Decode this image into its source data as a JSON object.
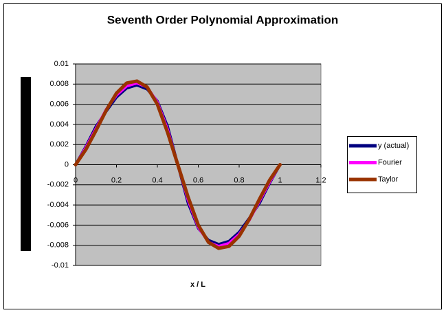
{
  "chart_data": {
    "type": "line",
    "title": "Seventh Order Polynomial Approximation",
    "x_label": "x / L",
    "x": [
      0,
      0.05,
      0.1,
      0.15,
      0.2,
      0.25,
      0.3,
      0.35,
      0.4,
      0.45,
      0.5,
      0.55,
      0.6,
      0.65,
      0.7,
      0.75,
      0.8,
      0.85,
      0.9,
      0.95,
      1
    ],
    "series": [
      {
        "name": "y (actual)",
        "color": "#000080",
        "values": [
          0,
          0.0018,
          0.0038,
          0.0053,
          0.0067,
          0.0076,
          0.0079,
          0.0075,
          0.0063,
          0.0038,
          0,
          -0.0038,
          -0.0063,
          -0.0075,
          -0.0079,
          -0.0076,
          -0.0067,
          -0.0053,
          -0.0038,
          -0.0018,
          0
        ]
      },
      {
        "name": "Fourier",
        "color": "#ff00ff",
        "values": [
          0,
          0.0017,
          0.0036,
          0.0055,
          0.0069,
          0.0078,
          0.0081,
          0.0077,
          0.0062,
          0.0035,
          0,
          -0.0035,
          -0.0062,
          -0.0077,
          -0.0081,
          -0.0078,
          -0.0069,
          -0.0055,
          -0.0036,
          -0.0017,
          0
        ]
      },
      {
        "name": "Taylor",
        "color": "#993300",
        "values": [
          0,
          0.0015,
          0.0034,
          0.0054,
          0.0071,
          0.0081,
          0.0083,
          0.0077,
          0.006,
          0.0032,
          0,
          -0.0032,
          -0.006,
          -0.0077,
          -0.0083,
          -0.0081,
          -0.0071,
          -0.0054,
          -0.0034,
          -0.0015,
          0
        ]
      }
    ],
    "xlim": [
      0,
      1.2
    ],
    "xticks": [
      0,
      0.2,
      0.4,
      0.6,
      0.8,
      1,
      1.2
    ],
    "ylim": [
      -0.01,
      0.01
    ],
    "yticks": [
      -0.01,
      -0.008,
      -0.006,
      -0.004,
      -0.002,
      0,
      0.002,
      0.004,
      0.006,
      0.008,
      0.01
    ],
    "grid": true,
    "legend": "right"
  }
}
